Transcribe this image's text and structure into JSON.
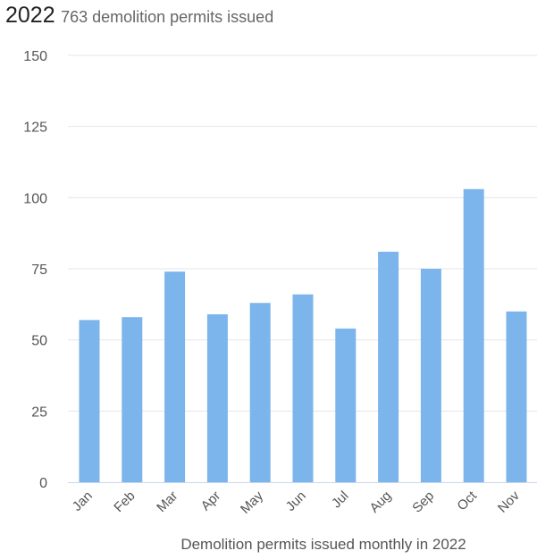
{
  "header": {
    "year": "2022",
    "subtitle": "763 demolition permits issued"
  },
  "chart_data": {
    "type": "bar",
    "title": "",
    "categories": [
      "Jan",
      "Feb",
      "Mar",
      "Apr",
      "May",
      "Jun",
      "Jul",
      "Aug",
      "Sep",
      "Oct",
      "Nov"
    ],
    "values": [
      57,
      58,
      74,
      59,
      63,
      66,
      54,
      81,
      75,
      103,
      60
    ],
    "xlabel": "Demolition permits issued monthly in 2022",
    "ylabel": "",
    "ylim": [
      0,
      150
    ],
    "yticks": [
      0,
      25,
      50,
      75,
      100,
      125,
      150
    ],
    "grid": true,
    "legend": "none",
    "colors": {
      "bar": "#7cb5ec",
      "grid": "#e6e6e6",
      "axis": "#ccd6eb"
    }
  }
}
